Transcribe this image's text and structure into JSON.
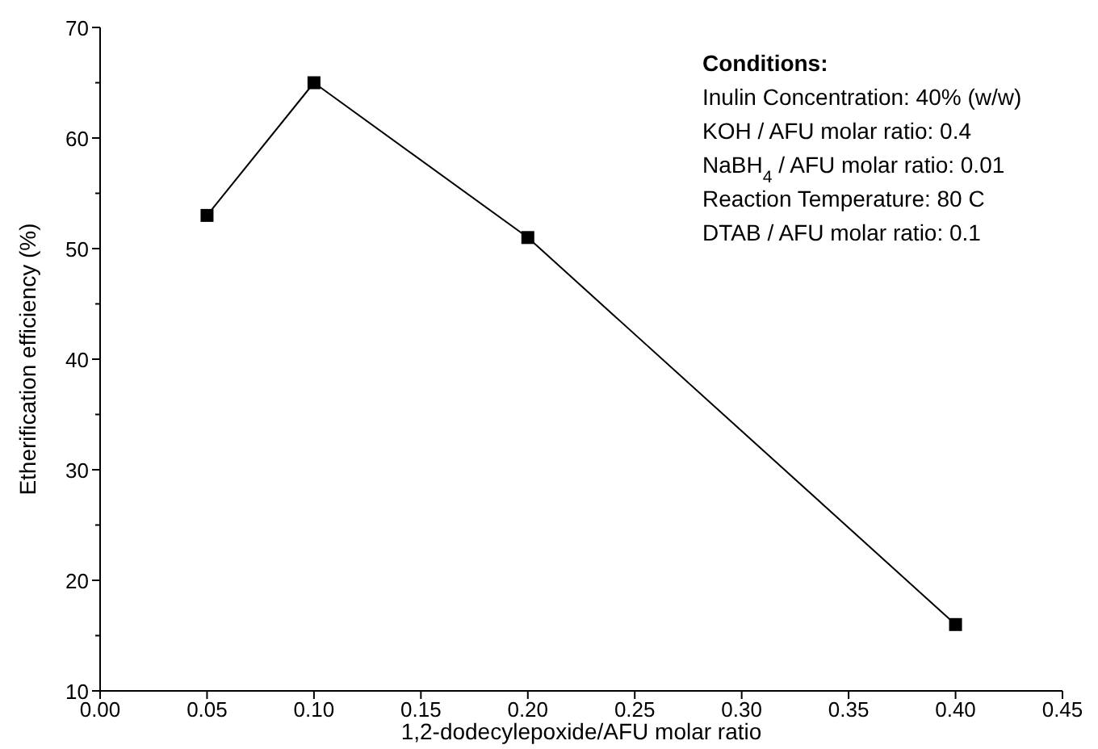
{
  "chart_data": {
    "type": "line",
    "xlabel": "1,2-dodecylepoxide/AFU molar ratio",
    "ylabel": "Etherification efficiency (%)",
    "x": [
      0.05,
      0.1,
      0.2,
      0.4
    ],
    "series": [
      {
        "color": "#000000",
        "values": [
          53,
          65,
          51,
          16
        ]
      }
    ],
    "marker": "square",
    "line_style": "solid",
    "grid": false,
    "xlim": [
      0,
      0.45
    ],
    "xticks": [
      {
        "value": 0,
        "label": "0.00"
      },
      {
        "value": 0.05,
        "label": "0.05"
      },
      {
        "value": 0.1,
        "label": "0.10"
      },
      {
        "value": 0.15,
        "label": "0.15"
      },
      {
        "value": 0.2,
        "label": "0.20"
      },
      {
        "value": 0.25,
        "label": "0.25"
      },
      {
        "value": 0.3,
        "label": "0.30"
      },
      {
        "value": 0.35,
        "label": "0.35"
      },
      {
        "value": 0.4,
        "label": "0.40"
      },
      {
        "value": 0.45,
        "label": "0.45"
      }
    ],
    "ylim": [
      10,
      70
    ],
    "yticks": [
      10,
      {
        "value": 15,
        "label": null
      },
      20,
      {
        "value": 25,
        "label": null
      },
      30,
      {
        "value": 35,
        "label": null
      },
      40,
      {
        "value": 45,
        "label": null
      },
      50,
      {
        "value": 55,
        "label": null
      },
      60,
      {
        "value": 65,
        "label": null
      },
      70
    ],
    "annotations": [
      "Conditions:",
      "Inulin Concentration: 40% (w/w)",
      "KOH / AFU molar ratio: 0.4",
      "NaBH$_{4}$ / AFU molar ratio: 0.01",
      "Reaction Temperature: 80 C",
      "DTAB / AFU molar ratio: 0.1"
    ]
  }
}
